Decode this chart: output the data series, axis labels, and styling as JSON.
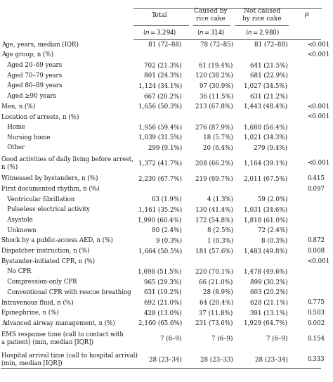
{
  "col_headers": [
    "Total",
    "Caused by\nrice cake",
    "Not caused\nby rice cake",
    "p"
  ],
  "col_subheaders": [
    "(n = 3,294)",
    "(n = 314)",
    "(n = 2,980)",
    ""
  ],
  "rows": [
    {
      "label": "Age, years, median (IQR)",
      "indent": 0,
      "values": [
        "81 (72–88)",
        "78 (72–85)",
        "81 (72–88)",
        "<0.001"
      ]
    },
    {
      "label": "Age group, n (%)",
      "indent": 0,
      "values": [
        "",
        "",
        "",
        "<0.001"
      ]
    },
    {
      "label": "   Aged 20–69 years",
      "indent": 1,
      "values": [
        "702 (21.3%)",
        "61 (19.4%)",
        "641 (21.5%)",
        ""
      ]
    },
    {
      "label": "   Aged 70–79 years",
      "indent": 1,
      "values": [
        "801 (24.3%)",
        "120 (38.2%)",
        "681 (22.9%)",
        ""
      ]
    },
    {
      "label": "   Aged 80–89 years",
      "indent": 1,
      "values": [
        "1,124 (34.1%)",
        "97 (30.9%)",
        "1,027 (34.5%)",
        ""
      ]
    },
    {
      "label": "   Aged ≥90 years",
      "indent": 1,
      "values": [
        "667 (20.2%)",
        "36 (11.5%)",
        "631 (21.2%)",
        ""
      ]
    },
    {
      "label": "Men, n (%)",
      "indent": 0,
      "values": [
        "1,656 (50.3%)",
        "213 (67.8%)",
        "1,443 (48.4%)",
        "<0.001"
      ]
    },
    {
      "label": "Location of arrests, n (%)",
      "indent": 0,
      "values": [
        "",
        "",
        "",
        "<0.001"
      ]
    },
    {
      "label": "   Home",
      "indent": 1,
      "values": [
        "1,956 (59.4%)",
        "276 (87.9%)",
        "1,680 (56.4%)",
        ""
      ]
    },
    {
      "label": "   Nursing home",
      "indent": 1,
      "values": [
        "1,039 (31.5%)",
        "18 (5.7%)",
        "1,021 (34.3%)",
        ""
      ]
    },
    {
      "label": "   Other",
      "indent": 1,
      "values": [
        "299 (9.1%)",
        "20 (6.4%)",
        "279 (9.4%)",
        ""
      ]
    },
    {
      "label": "Good activities of daily living before arrest,\nn (%)",
      "indent": 0,
      "multiline": true,
      "values": [
        "1,372 (41.7%)",
        "208 (66.2%)",
        "1,164 (39.1%)",
        "<0.001"
      ]
    },
    {
      "label": "Witnessed by bystanders, n (%)",
      "indent": 0,
      "values": [
        "2,230 (67.7%)",
        "219 (69.7%)",
        "2,011 (67.5%)",
        "0.415"
      ]
    },
    {
      "label": "First documented rhythm, n (%)",
      "indent": 0,
      "values": [
        "",
        "",
        "",
        "0.097"
      ]
    },
    {
      "label": "   Ventricular fibrillation",
      "indent": 1,
      "values": [
        "63 (1.9%)",
        "4 (1.3%)",
        "59 (2.0%)",
        ""
      ]
    },
    {
      "label": "   Pulseless electrical activity",
      "indent": 1,
      "values": [
        "1,161 (35.2%)",
        "130 (41.4%)",
        "1,031 (34.6%)",
        ""
      ]
    },
    {
      "label": "   Asystole",
      "indent": 1,
      "values": [
        "1,990 (60.4%)",
        "172 (54.8%)",
        "1,818 (61.0%)",
        ""
      ]
    },
    {
      "label": "   Unknown",
      "indent": 1,
      "values": [
        "80 (2.4%)",
        "8 (2.5%)",
        "72 (2.4%)",
        ""
      ]
    },
    {
      "label": "Shock by a public-access AED, n (%)",
      "indent": 0,
      "values": [
        "9 (0.3%)",
        "1 (0.3%)",
        "8 (0.3%)",
        "0.872"
      ]
    },
    {
      "label": "Dispatcher instruction, n (%)",
      "indent": 0,
      "values": [
        "1,664 (50.5%)",
        "181 (57.6%)",
        "1,483 (49.8%)",
        "0.008"
      ]
    },
    {
      "label": "Bystander-initiated CPR, n (%)",
      "indent": 0,
      "values": [
        "",
        "",
        "",
        "<0.001"
      ]
    },
    {
      "label": "   No CPR",
      "indent": 1,
      "values": [
        "1,698 (51.5%)",
        "220 (70.1%)",
        "1,478 (49.6%)",
        ""
      ]
    },
    {
      "label": "   Compression-only CPR",
      "indent": 1,
      "values": [
        "965 (29.3%)",
        "66 (21.0%)",
        "899 (30.2%)",
        ""
      ]
    },
    {
      "label": "   Conventional CPR with rescue breathing",
      "indent": 1,
      "values": [
        "631 (19.2%)",
        "28 (8.9%)",
        "603 (20.2%)",
        ""
      ]
    },
    {
      "label": "Intravenous fluid, n (%)",
      "indent": 0,
      "values": [
        "692 (21.0%)",
        "64 (20.4%)",
        "628 (21.1%)",
        "0.775"
      ]
    },
    {
      "label": "Epinephrine, n (%)",
      "indent": 0,
      "values": [
        "428 (13.0%)",
        "37 (11.8%)",
        "391 (13.1%)",
        "0.503"
      ]
    },
    {
      "label": "Advanced airway management, n (%)",
      "indent": 0,
      "values": [
        "2,160 (65.6%)",
        "231 (73.6%)",
        "1,929 (64.7%)",
        "0.002"
      ]
    },
    {
      "label": "EMS response time (call to contact with\na patient) (min, median [IQR])",
      "indent": 0,
      "multiline": true,
      "values": [
        "7 (6–9)",
        "7 (6–9)",
        "7 (6–9)",
        "0.154"
      ]
    },
    {
      "label": "Hospital arrival time (call to hospital arrival)\n(min, median [IQR])",
      "indent": 0,
      "multiline": true,
      "values": [
        "28 (23–34)",
        "28 (23–33)",
        "28 (23–34)",
        "0.333"
      ]
    }
  ],
  "bg_color": "#ffffff",
  "text_color": "#1a1a1a",
  "line_color": "#555555",
  "font_size": 6.2,
  "header_font_size": 6.5
}
